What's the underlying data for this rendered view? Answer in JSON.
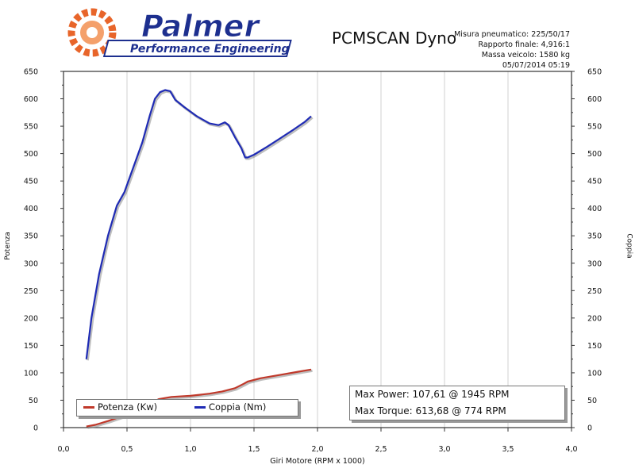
{
  "header": {
    "logo_name": "Palmer",
    "logo_subtitle": "Performance Engineering",
    "app_title": "PCMSCAN Dyno",
    "meta": [
      "Misura pneumatico: 225/50/17",
      "Rapporto finale: 4,916:1",
      "Massa veicolo: 1580 kg",
      "05/07/2014 05:19"
    ]
  },
  "colors": {
    "power": "#c0392b",
    "torque": "#1f2bb5",
    "logo_orange": "#e8652a",
    "logo_blue": "#1d2f8f"
  },
  "legend": {
    "power_label": "Potenza (Kw)",
    "torque_label": "Coppia (Nm)"
  },
  "max_box": {
    "power": "Max Power: 107,61 @ 1945 RPM",
    "torque": "Max Torque: 613,68 @ 774 RPM"
  },
  "chart_data": {
    "type": "line",
    "xlabel": "Giri Motore (RPM x 1000)",
    "ylabel": "Potenza",
    "ylabel_right": "Coppia",
    "xlim": [
      0,
      4
    ],
    "ylim": [
      0,
      650
    ],
    "x_ticks": [
      "0,0",
      "0,5",
      "1,0",
      "1,5",
      "2,0",
      "2,5",
      "3,0",
      "3,5",
      "4,0"
    ],
    "y_ticks": [
      "0",
      "50",
      "100",
      "150",
      "200",
      "250",
      "300",
      "350",
      "400",
      "450",
      "500",
      "550",
      "600",
      "650"
    ],
    "grid": "vertical",
    "series": [
      {
        "name": "Potenza (Kw)",
        "x": [
          0.18,
          0.25,
          0.35,
          0.45,
          0.55,
          0.65,
          0.75,
          0.85,
          1.0,
          1.15,
          1.25,
          1.35,
          1.42,
          1.45,
          1.55,
          1.7,
          1.85,
          1.95
        ],
        "y": [
          2,
          5,
          12,
          20,
          28,
          40,
          52,
          56,
          58,
          62,
          66,
          72,
          80,
          84,
          90,
          96,
          102,
          106
        ]
      },
      {
        "name": "Coppia (Nm)",
        "x": [
          0.18,
          0.22,
          0.28,
          0.35,
          0.42,
          0.48,
          0.55,
          0.62,
          0.68,
          0.72,
          0.76,
          0.8,
          0.84,
          0.88,
          0.95,
          1.05,
          1.15,
          1.22,
          1.27,
          1.3,
          1.35,
          1.4,
          1.43,
          1.45,
          1.5,
          1.6,
          1.7,
          1.8,
          1.9,
          1.95
        ],
        "y": [
          125,
          200,
          280,
          350,
          405,
          430,
          475,
          520,
          570,
          600,
          612,
          616,
          614,
          598,
          585,
          568,
          555,
          552,
          557,
          552,
          530,
          510,
          493,
          493,
          498,
          512,
          527,
          542,
          558,
          568
        ]
      }
    ]
  }
}
